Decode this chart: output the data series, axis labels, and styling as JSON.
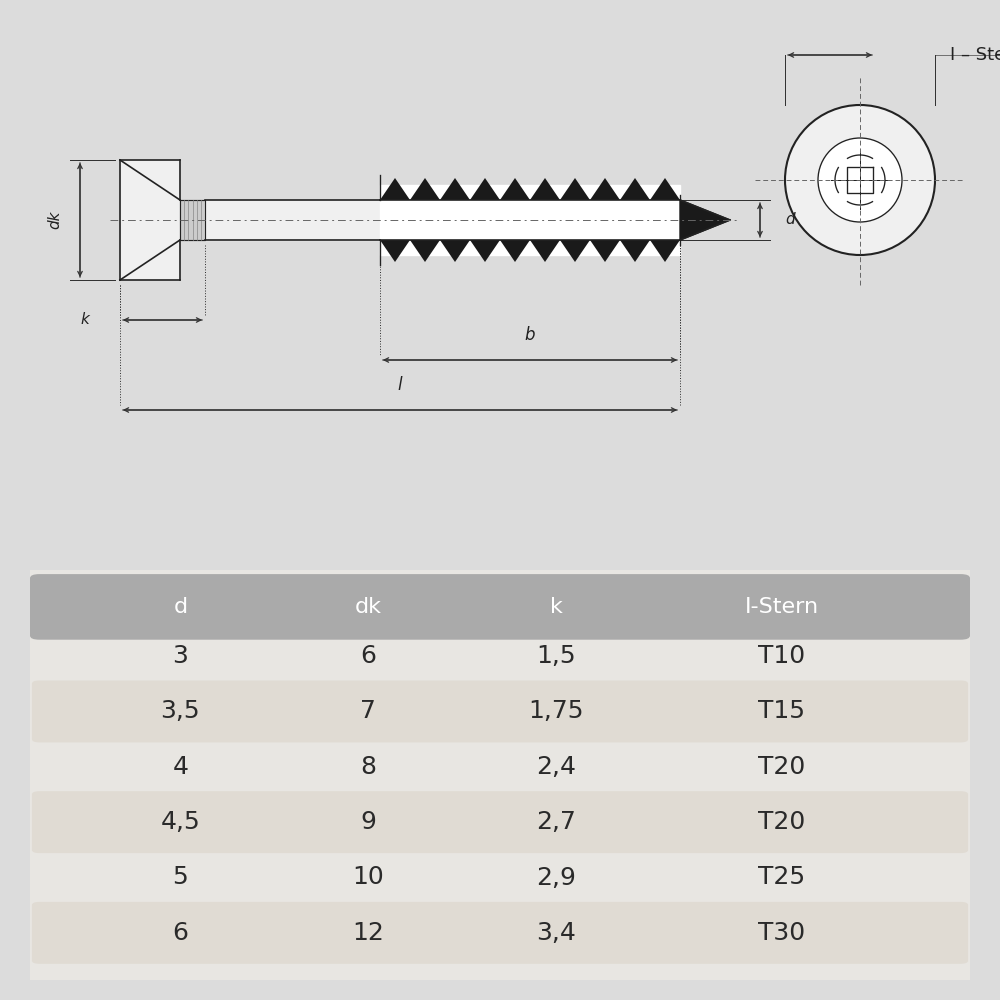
{
  "bg_color": "#dcdcdc",
  "drawing_bg": "#f5f5f5",
  "table_bg": "#e8e6e2",
  "header_bg": "#aaaaaa",
  "row_alt_bg": "#e0dbd3",
  "row_white_bg": "#f0ede8",
  "line_color": "#222222",
  "dim_color": "#333333",
  "center_color": "#666666",
  "label_color": "#222222",
  "header_labels": [
    "d",
    "dk",
    "k",
    "I-Stern"
  ],
  "rows": [
    [
      "3",
      "6",
      "1,5",
      "T10"
    ],
    [
      "3,5",
      "7",
      "1,75",
      "T15"
    ],
    [
      "4",
      "8",
      "2,4",
      "T20"
    ],
    [
      "4,5",
      "9",
      "2,7",
      "T20"
    ],
    [
      "5",
      "10",
      "2,9",
      "T25"
    ],
    [
      "6",
      "12",
      "3,4",
      "T30"
    ]
  ],
  "font_size_label": 11,
  "font_size_table_header": 16,
  "font_size_table_cell": 18,
  "font_size_istern": 13
}
